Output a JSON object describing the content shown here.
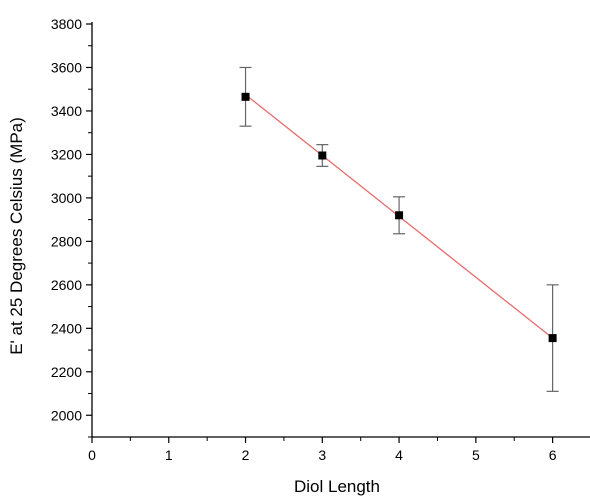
{
  "chart_data": {
    "type": "scatter",
    "xlabel": "Diol Length",
    "ylabel": "E' at 25 Degrees Celsius (MPa)",
    "xlim": [
      0,
      6.5
    ],
    "ylim": [
      1900,
      3800
    ],
    "x_ticks": [
      "0",
      "1",
      "2",
      "3",
      "4",
      "5",
      "6"
    ],
    "y_ticks": [
      "2000",
      "2200",
      "2400",
      "2600",
      "2800",
      "3000",
      "3200",
      "3400",
      "3600",
      "3800"
    ],
    "grid": false,
    "series": [
      {
        "points": [
          {
            "x": 2,
            "y": 3465,
            "err_low": 3330,
            "err_high": 3600
          },
          {
            "x": 3,
            "y": 3195,
            "err_low": 3145,
            "err_high": 3245
          },
          {
            "x": 4,
            "y": 2920,
            "err_low": 2835,
            "err_high": 3005
          },
          {
            "x": 6,
            "y": 2355,
            "err_low": 2110,
            "err_high": 2600
          }
        ],
        "marker_color": "#000000",
        "errorbar_color": "#666666"
      }
    ],
    "fit_line": {
      "x": [
        2,
        6
      ],
      "y": [
        3475,
        2355
      ],
      "color": "#e86a6a"
    }
  }
}
